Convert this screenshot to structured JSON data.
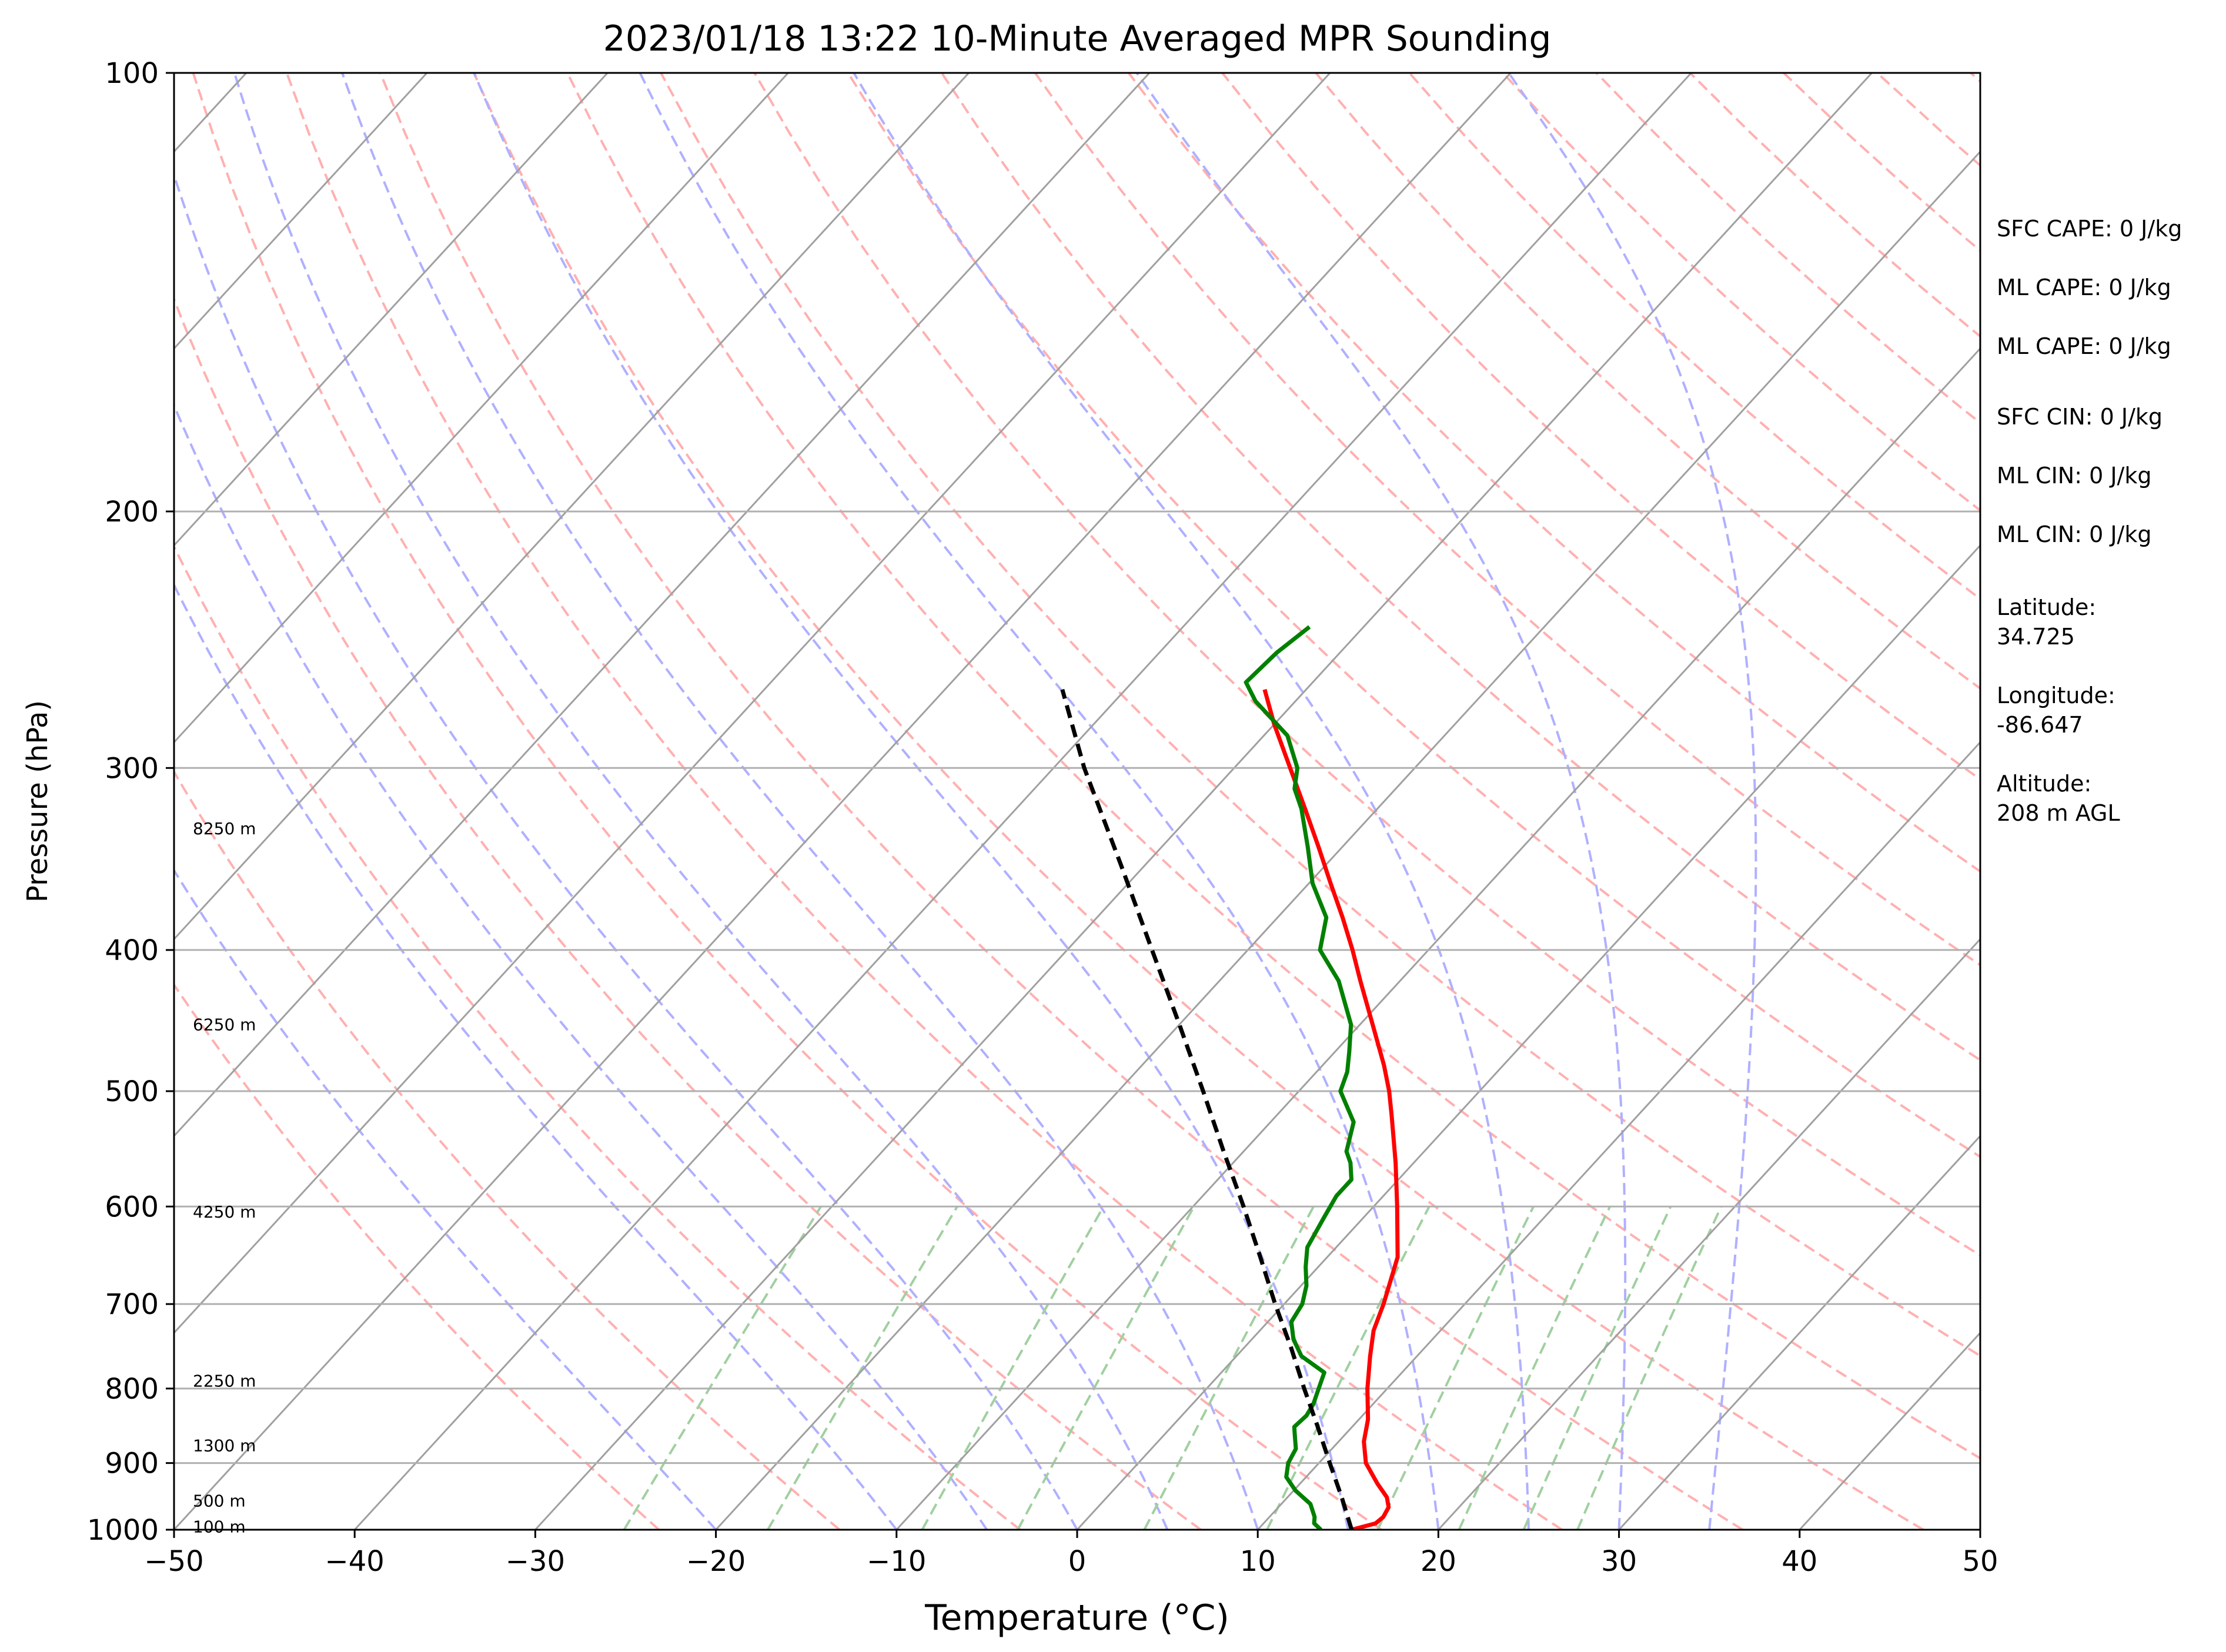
{
  "chart_data": {
    "type": "skew-t",
    "title": "2023/01/18 13:22 10-Minute Averaged MPR Sounding",
    "xlabel": "Temperature (°C)",
    "ylabel": "Pressure (hPa)",
    "xlim": [
      -50,
      50
    ],
    "ylim": [
      1000,
      100
    ],
    "y_scale": "log",
    "x_ticks": [
      "−50",
      "−40",
      "−30",
      "−20",
      "−10",
      "0",
      "10",
      "20",
      "30",
      "40",
      "50"
    ],
    "y_ticks": [
      "100",
      "200",
      "300",
      "400",
      "500",
      "600",
      "700",
      "800",
      "900",
      "1000"
    ],
    "grid": true,
    "height_labels": [
      {
        "label": "8250 m",
        "pressure": 330
      },
      {
        "label": "6250 m",
        "pressure": 450
      },
      {
        "label": "4250 m",
        "pressure": 605
      },
      {
        "label": "2250 m",
        "pressure": 790
      },
      {
        "label": "1300 m",
        "pressure": 875
      },
      {
        "label": "500 m",
        "pressure": 955
      },
      {
        "label": "100 m",
        "pressure": 995
      }
    ],
    "series": [
      {
        "color": "#ff0000",
        "style": "solid",
        "points": [
          [
            1000,
            15.2
          ],
          [
            990,
            16.2
          ],
          [
            980,
            16.3
          ],
          [
            965,
            16.1
          ],
          [
            950,
            15.5
          ],
          [
            930,
            14.3
          ],
          [
            900,
            12.6
          ],
          [
            870,
            11.4
          ],
          [
            840,
            10.5
          ],
          [
            800,
            8.9
          ],
          [
            760,
            7.4
          ],
          [
            730,
            6.3
          ],
          [
            700,
            5.5
          ],
          [
            650,
            3.9
          ],
          [
            600,
            1.3
          ],
          [
            560,
            -1.0
          ],
          [
            520,
            -3.6
          ],
          [
            500,
            -5.0
          ],
          [
            480,
            -6.6
          ],
          [
            450,
            -9.3
          ],
          [
            420,
            -12.2
          ],
          [
            400,
            -14.2
          ],
          [
            380,
            -16.4
          ],
          [
            360,
            -18.8
          ],
          [
            340,
            -21.3
          ],
          [
            320,
            -24.0
          ],
          [
            300,
            -26.9
          ],
          [
            280,
            -30.0
          ],
          [
            265,
            -32.3
          ]
        ]
      },
      {
        "color": "#008000",
        "style": "solid",
        "points": [
          [
            1000,
            13.5
          ],
          [
            990,
            12.8
          ],
          [
            980,
            12.5
          ],
          [
            960,
            11.6
          ],
          [
            940,
            10.1
          ],
          [
            920,
            8.9
          ],
          [
            900,
            8.3
          ],
          [
            880,
            8.0
          ],
          [
            860,
            7.2
          ],
          [
            850,
            6.8
          ],
          [
            835,
            6.9
          ],
          [
            820,
            6.7
          ],
          [
            800,
            6.2
          ],
          [
            780,
            5.7
          ],
          [
            760,
            3.6
          ],
          [
            740,
            2.3
          ],
          [
            720,
            1.3
          ],
          [
            700,
            1.0
          ],
          [
            680,
            0.3
          ],
          [
            660,
            -0.7
          ],
          [
            640,
            -1.6
          ],
          [
            610,
            -2.2
          ],
          [
            590,
            -2.6
          ],
          [
            575,
            -2.6
          ],
          [
            560,
            -3.5
          ],
          [
            550,
            -4.3
          ],
          [
            525,
            -5.4
          ],
          [
            500,
            -7.7
          ],
          [
            485,
            -8.3
          ],
          [
            470,
            -9.2
          ],
          [
            450,
            -10.5
          ],
          [
            420,
            -13.4
          ],
          [
            400,
            -16.0
          ],
          [
            380,
            -17.3
          ],
          [
            360,
            -19.8
          ],
          [
            340,
            -21.9
          ],
          [
            320,
            -24.2
          ],
          [
            310,
            -25.6
          ],
          [
            300,
            -26.5
          ],
          [
            285,
            -28.7
          ],
          [
            270,
            -32.2
          ],
          [
            262,
            -33.7
          ],
          [
            250,
            -33.5
          ],
          [
            240,
            -33.0
          ]
        ]
      },
      {
        "color": "#000000",
        "style": "dashed",
        "points": [
          [
            1000,
            15.2
          ],
          [
            950,
            13.0
          ],
          [
            900,
            10.6
          ],
          [
            850,
            8.1
          ],
          [
            800,
            5.4
          ],
          [
            750,
            2.6
          ],
          [
            700,
            -0.5
          ],
          [
            650,
            -3.7
          ],
          [
            600,
            -7.2
          ],
          [
            550,
            -11.1
          ],
          [
            500,
            -15.3
          ],
          [
            450,
            -20.0
          ],
          [
            400,
            -25.3
          ],
          [
            350,
            -31.3
          ],
          [
            300,
            -38.3
          ],
          [
            265,
            -43.5
          ]
        ]
      }
    ],
    "info_panel": [
      "SFC CAPE: 0 J/kg",
      "ML CAPE: 0 J/kg",
      "ML CAPE: 0 J/kg",
      "SFC CIN: 0 J/kg",
      "ML CIN: 0 J/kg",
      "ML CIN: 0 J/kg",
      "Latitude:",
      "34.725",
      "Longitude:",
      "-86.647",
      "Altitude:",
      "208 m AGL"
    ],
    "colors": {
      "isotherm": "#a0a0a0",
      "isobar": "#b0b0b0",
      "dry_adiabat": "#ffb0b0",
      "moist_adiabat": "#b0b0ff",
      "mixing_ratio": "#a0d0a0",
      "temperature": "#ff0000",
      "dewpoint": "#008000",
      "parcel": "#000000"
    }
  }
}
